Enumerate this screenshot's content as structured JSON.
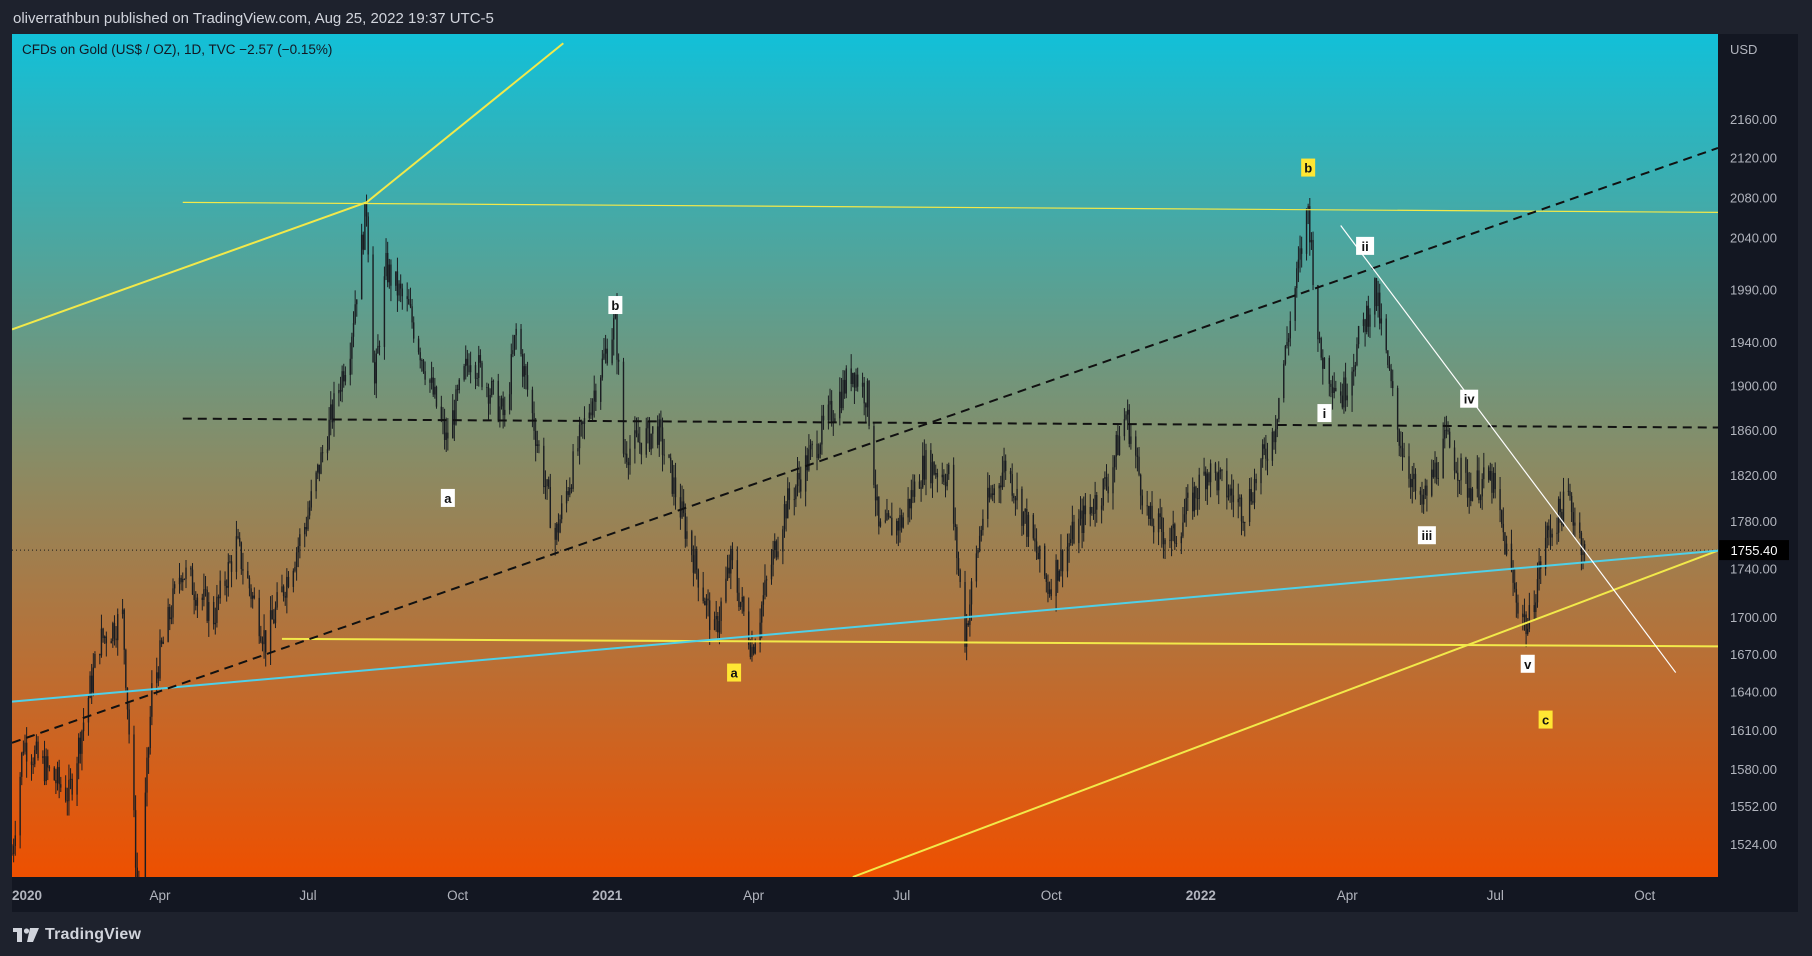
{
  "header": {
    "publisher": "oliverrathbun published on TradingView.com, Aug 25, 2022 19:37 UTC-5"
  },
  "legend": {
    "text": "CFDs on Gold (US$ / OZ), 1D, TVC  −2.57 (−0.15%)"
  },
  "footer": {
    "brand": "TradingView"
  },
  "colors": {
    "gradient_top": "#12c0d8",
    "gradient_mid": "#8c8a62",
    "gradient_bottom": "#ee5000",
    "candle": "#1a1d22",
    "trend_yellow": "#f2e94a",
    "trend_cyan": "#4fd0e8",
    "trend_black": "#111111",
    "trend_white": "#ffffff",
    "wave_label_yellow": "#ffe633",
    "price_badge_bg": "#000000"
  },
  "chart_data": {
    "type": "candlestick",
    "symbol": "CFDs on Gold (US$ / OZ)",
    "interval": "1D",
    "currency": "USD",
    "change": "−2.57 (−0.15%)",
    "last_price": "1755.40",
    "y_scale": "log",
    "ylim": [
      1500,
      2250
    ],
    "y_ticks": [
      "2160.00",
      "2120.00",
      "2080.00",
      "2040.00",
      "1990.00",
      "1940.00",
      "1900.00",
      "1860.00",
      "1820.00",
      "1780.00",
      "1740.00",
      "1700.00",
      "1670.00",
      "1640.00",
      "1610.00",
      "1580.00",
      "1552.00",
      "1524.00"
    ],
    "x_ticks": [
      {
        "label": "2020",
        "date": "2020-01-01",
        "bold": true
      },
      {
        "label": "Apr",
        "date": "2020-04-01",
        "bold": false
      },
      {
        "label": "Jul",
        "date": "2020-07-01",
        "bold": false
      },
      {
        "label": "Oct",
        "date": "2020-10-01",
        "bold": false
      },
      {
        "label": "2021",
        "date": "2021-01-01",
        "bold": true
      },
      {
        "label": "Apr",
        "date": "2021-04-01",
        "bold": false
      },
      {
        "label": "Jul",
        "date": "2021-07-01",
        "bold": false
      },
      {
        "label": "Oct",
        "date": "2021-10-01",
        "bold": false
      },
      {
        "label": "2022",
        "date": "2022-01-01",
        "bold": true
      },
      {
        "label": "Apr",
        "date": "2022-04-01",
        "bold": false
      },
      {
        "label": "Jul",
        "date": "2022-07-01",
        "bold": false
      },
      {
        "label": "Oct",
        "date": "2022-10-01",
        "bold": false
      }
    ],
    "xlim": [
      "2020-01-01",
      "2022-11-15"
    ],
    "price_anchors": [
      [
        "2020-01-01",
        1517
      ],
      [
        "2020-01-08",
        1600
      ],
      [
        "2020-02-05",
        1560
      ],
      [
        "2020-02-24",
        1680
      ],
      [
        "2020-03-09",
        1700
      ],
      [
        "2020-03-19",
        1470
      ],
      [
        "2020-03-27",
        1640
      ],
      [
        "2020-04-14",
        1740
      ],
      [
        "2020-05-04",
        1700
      ],
      [
        "2020-05-18",
        1760
      ],
      [
        "2020-06-05",
        1680
      ],
      [
        "2020-06-30",
        1780
      ],
      [
        "2020-07-27",
        1940
      ],
      [
        "2020-08-06",
        2070
      ],
      [
        "2020-08-11",
        1900
      ],
      [
        "2020-08-18",
        2010
      ],
      [
        "2020-09-01",
        1970
      ],
      [
        "2020-09-24",
        1850
      ],
      [
        "2020-10-09",
        1930
      ],
      [
        "2020-10-30",
        1870
      ],
      [
        "2020-11-06",
        1950
      ],
      [
        "2020-11-30",
        1765
      ],
      [
        "2020-12-15",
        1850
      ],
      [
        "2021-01-06",
        1960
      ],
      [
        "2021-01-11",
        1840
      ],
      [
        "2021-02-01",
        1860
      ],
      [
        "2021-02-18",
        1775
      ],
      [
        "2021-03-08",
        1685
      ],
      [
        "2021-03-18",
        1745
      ],
      [
        "2021-03-31",
        1675
      ],
      [
        "2021-04-20",
        1790
      ],
      [
        "2021-05-17",
        1870
      ],
      [
        "2021-06-01",
        1915
      ],
      [
        "2021-06-10",
        1890
      ],
      [
        "2021-06-17",
        1770
      ],
      [
        "2021-07-01",
        1780
      ],
      [
        "2021-07-15",
        1830
      ],
      [
        "2021-07-30",
        1820
      ],
      [
        "2021-08-09",
        1685
      ],
      [
        "2021-08-20",
        1785
      ],
      [
        "2021-09-03",
        1830
      ],
      [
        "2021-09-29",
        1725
      ],
      [
        "2021-10-15",
        1770
      ],
      [
        "2021-11-05",
        1815
      ],
      [
        "2021-11-16",
        1875
      ],
      [
        "2021-11-30",
        1780
      ],
      [
        "2021-12-15",
        1765
      ],
      [
        "2022-01-05",
        1825
      ],
      [
        "2022-01-28",
        1790
      ],
      [
        "2022-02-15",
        1860
      ],
      [
        "2022-03-08",
        2070
      ],
      [
        "2022-03-15",
        1930
      ],
      [
        "2022-03-29",
        1890
      ],
      [
        "2022-04-18",
        1990
      ],
      [
        "2022-05-02",
        1860
      ],
      [
        "2022-05-16",
        1790
      ],
      [
        "2022-06-01",
        1850
      ],
      [
        "2022-06-14",
        1810
      ],
      [
        "2022-06-29",
        1815
      ],
      [
        "2022-07-13",
        1720
      ],
      [
        "2022-07-21",
        1690
      ],
      [
        "2022-08-01",
        1765
      ],
      [
        "2022-08-15",
        1800
      ],
      [
        "2022-08-25",
        1755
      ]
    ],
    "trendlines": [
      {
        "color": "yellow",
        "style": "solid",
        "from": [
          "2020-01-01",
          1952
        ],
        "to": [
          "2020-08-06",
          2075
        ]
      },
      {
        "color": "yellow",
        "style": "solid",
        "from": [
          "2020-08-06",
          2075
        ],
        "to": [
          "2020-12-05",
          2240
        ]
      },
      {
        "color": "yellow",
        "style": "solid",
        "from": [
          "2020-04-15",
          2075
        ],
        "to": [
          "2022-11-15",
          2065
        ]
      },
      {
        "color": "yellow",
        "style": "solid",
        "from": [
          "2020-06-15",
          1682
        ],
        "to": [
          "2022-11-15",
          1676
        ]
      },
      {
        "color": "yellow",
        "style": "solid",
        "from": [
          "2021-06-01",
          1500
        ],
        "to": [
          "2022-11-15",
          1755
        ]
      },
      {
        "color": "cyan",
        "style": "solid",
        "from": [
          "2020-01-01",
          1632
        ],
        "to": [
          "2022-11-15",
          1755
        ]
      },
      {
        "color": "black",
        "style": "dashed",
        "from": [
          "2020-01-01",
          1600
        ],
        "to": [
          "2022-11-15",
          2130
        ]
      },
      {
        "color": "black",
        "style": "dashed",
        "from": [
          "2020-04-15",
          1870
        ],
        "to": [
          "2022-11-15",
          1862
        ]
      },
      {
        "color": "white",
        "style": "solid",
        "from": [
          "2022-03-28",
          2052
        ],
        "to": [
          "2022-10-20",
          1655
        ]
      }
    ],
    "wave_labels": [
      {
        "text": "a",
        "date": "2020-09-25",
        "price": 1800,
        "style": "white"
      },
      {
        "text": "b",
        "date": "2021-01-06",
        "price": 1975,
        "style": "white"
      },
      {
        "text": "a",
        "date": "2021-03-20",
        "price": 1655,
        "style": "yellow"
      },
      {
        "text": "b",
        "date": "2022-03-08",
        "price": 2110,
        "style": "yellow"
      },
      {
        "text": "ii",
        "date": "2022-04-12",
        "price": 2032,
        "style": "white"
      },
      {
        "text": "i",
        "date": "2022-03-18",
        "price": 1875,
        "style": "white"
      },
      {
        "text": "iv",
        "date": "2022-06-15",
        "price": 1888,
        "style": "white"
      },
      {
        "text": "iii",
        "date": "2022-05-20",
        "price": 1768,
        "style": "white"
      },
      {
        "text": "v",
        "date": "2022-07-21",
        "price": 1662,
        "style": "white"
      },
      {
        "text": "c",
        "date": "2022-08-01",
        "price": 1618,
        "style": "yellow"
      }
    ]
  }
}
